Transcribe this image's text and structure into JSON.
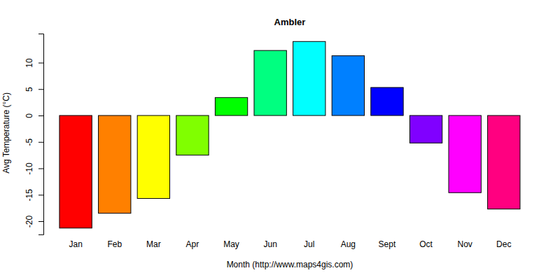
{
  "chart_data": {
    "type": "bar",
    "title": "Ambler",
    "x_label": "Month (http://www.maps4gis.com)",
    "y_label": "Avg Temperature (°C)",
    "categories": [
      "Jan",
      "Feb",
      "Mar",
      "Apr",
      "May",
      "Jun",
      "Jul",
      "Aug",
      "Sept",
      "Oct",
      "Nov",
      "Dec"
    ],
    "values": [
      -21.3,
      -18.5,
      -15.7,
      -7.5,
      3.4,
      12.3,
      14.0,
      11.3,
      5.3,
      -5.2,
      -14.6,
      -17.7
    ],
    "colors": [
      "#FF0000",
      "#FF8000",
      "#FFFF00",
      "#80FF00",
      "#00FF00",
      "#00FF80",
      "#00FFFF",
      "#0080FF",
      "#0000FF",
      "#8000FF",
      "#FF00FF",
      "#FF0080"
    ],
    "ylim": [
      -22.5,
      15.5
    ],
    "yticks": [
      -20,
      -15,
      -10,
      -5,
      0,
      5,
      10
    ],
    "grid": false
  }
}
